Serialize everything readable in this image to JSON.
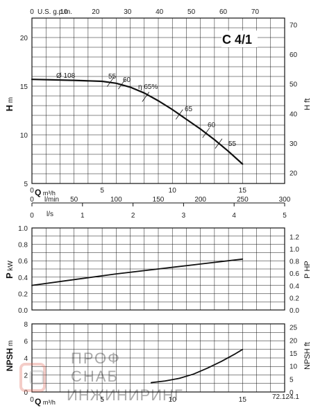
{
  "chart_data": [
    {
      "type": "line",
      "title": "C 4/1",
      "xlabel_top": "U.S. g.p.m.",
      "ylabel": "H",
      "ylabel_unit": "m",
      "ylabel_right": "H",
      "ylabel_right_unit": "ft",
      "x_range_m3h": [
        0,
        15
      ],
      "ylim": [
        5,
        22
      ],
      "y_ticks": [
        5,
        10,
        15,
        20
      ],
      "y_right_ticks": [
        20,
        30,
        40,
        50,
        60,
        70
      ],
      "gpm_ticks": [
        0,
        10,
        20,
        30,
        40,
        50,
        60,
        70
      ],
      "series": [
        {
          "name": "Ø 108",
          "x": [
            0,
            3,
            5,
            6,
            7,
            8,
            9,
            10,
            11,
            12,
            13,
            14,
            15
          ],
          "y": [
            15.7,
            15.6,
            15.5,
            15.3,
            14.9,
            14.3,
            13.5,
            12.6,
            11.6,
            10.6,
            9.5,
            8.3,
            7.0
          ]
        }
      ],
      "annotations": {
        "diameter": "Ø 108",
        "eff_55_a": "55",
        "eff_60_a": "60",
        "eff_65_peak": "η 65%",
        "eff_65_b": "65",
        "eff_60_b": "60",
        "eff_55_b": "55"
      }
    },
    {
      "type": "axis",
      "xlabel": "Q",
      "xlabel_unit": "m³/h",
      "x_ticks": [
        0,
        5,
        10,
        15
      ],
      "lmin_label": "l/min",
      "lmin_ticks": [
        0,
        50,
        100,
        150,
        200,
        250,
        300
      ],
      "ls_label": "l/s",
      "ls_ticks": [
        0,
        1,
        2,
        3,
        4,
        5
      ]
    },
    {
      "type": "line",
      "ylabel": "P",
      "ylabel_unit": "kW",
      "ylabel_right": "P",
      "ylabel_right_unit": "HP",
      "ylim": [
        0,
        1.0
      ],
      "y_ticks": [
        0,
        0.2,
        0.4,
        0.6,
        0.8,
        1.0
      ],
      "y_right_ticks": [
        0,
        0.2,
        0.4,
        0.6,
        0.8,
        1.0,
        1.2
      ],
      "series": [
        {
          "name": "",
          "x": [
            0,
            3,
            6,
            9,
            12,
            15
          ],
          "y": [
            0.3,
            0.37,
            0.44,
            0.5,
            0.56,
            0.62
          ]
        }
      ]
    },
    {
      "type": "line",
      "ylabel": "NPSH",
      "ylabel_unit": "m",
      "ylabel_right": "NPSH",
      "ylabel_right_unit": "ft",
      "xlabel": "Q",
      "xlabel_unit": "m³/h",
      "ylim": [
        0,
        8
      ],
      "y_ticks": [
        0,
        2,
        4,
        6,
        8
      ],
      "y_right_ticks": [
        0,
        5,
        10,
        15,
        20,
        25
      ],
      "x_ticks": [
        0,
        5,
        10,
        15
      ],
      "series": [
        {
          "name": "",
          "x": [
            8.5,
            9.5,
            10.5,
            11.5,
            12.5,
            13.5,
            14.5,
            15
          ],
          "y": [
            1.1,
            1.3,
            1.6,
            2.1,
            2.8,
            3.6,
            4.5,
            5.0
          ]
        }
      ],
      "ref": "72.124.1"
    }
  ],
  "watermark": {
    "line1": "ПРОФ",
    "line2": "СНАБ",
    "line3": "ИНЖИНИРИНГ"
  }
}
